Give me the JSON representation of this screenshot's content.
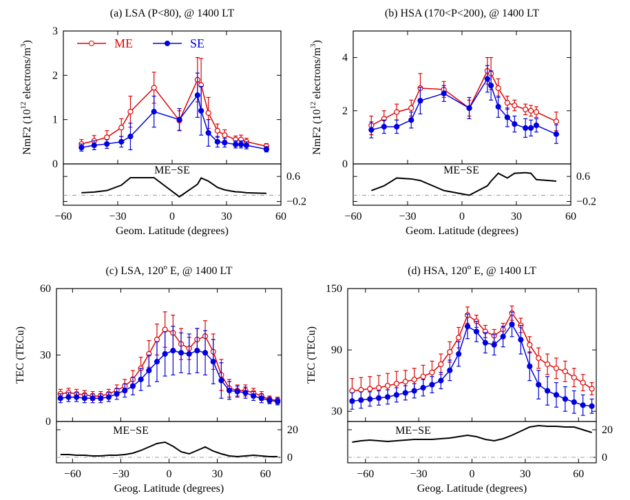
{
  "chart_data": [
    {
      "type": "line",
      "title": "(a) LSA (P<80), @ 1400 LT",
      "xlabel": "Geom. Latitude (degrees)",
      "ylabel": [
        "NmF2 (10",
        "12",
        " electrons/m",
        "3",
        ")"
      ],
      "x": [
        -50,
        -43,
        -36,
        -28,
        -23,
        -10,
        4,
        14,
        16,
        20,
        25,
        29,
        35,
        38,
        41,
        52
      ],
      "xlim": [
        -60,
        60
      ],
      "xticks": [
        {
          "value": -60,
          "label": "−60"
        },
        {
          "value": -30,
          "label": "−30"
        },
        0,
        30,
        60
      ],
      "ylim": [
        0,
        3
      ],
      "yticks": [
        0,
        1,
        2,
        3
      ],
      "series": [
        {
          "name": "ME",
          "color": "#e00000",
          "marker": "open",
          "values": [
            0.45,
            0.52,
            0.6,
            0.82,
            1.18,
            1.72,
            0.98,
            1.9,
            1.78,
            1.15,
            0.75,
            0.65,
            0.55,
            0.55,
            0.5,
            0.4
          ],
          "errors": [
            0.1,
            0.12,
            0.15,
            0.2,
            0.35,
            0.35,
            0.22,
            0.5,
            0.6,
            0.35,
            0.15,
            0.12,
            0.08,
            0.1,
            0.08,
            0.06
          ]
        },
        {
          "name": "SE",
          "color": "#0000e0",
          "marker": "filled",
          "values": [
            0.37,
            0.42,
            0.45,
            0.5,
            0.62,
            1.18,
            1.0,
            1.55,
            1.2,
            0.7,
            0.5,
            0.48,
            0.44,
            0.44,
            0.42,
            0.33
          ],
          "errors": [
            0.08,
            0.1,
            0.1,
            0.12,
            0.3,
            0.35,
            0.25,
            0.5,
            0.55,
            0.3,
            0.12,
            0.1,
            0.08,
            0.08,
            0.08,
            0.06
          ]
        }
      ],
      "inset": {
        "label": "ME−SE",
        "values": [
          0.08,
          0.1,
          0.15,
          0.32,
          0.56,
          0.56,
          -0.05,
          0.35,
          0.55,
          0.45,
          0.25,
          0.17,
          0.11,
          0.1,
          0.08,
          0.06
        ],
        "ylim": [
          -0.32,
          1.0
        ],
        "yticks": [
          {
            "value": -0.2,
            "label": "−0.2"
          },
          0.6
        ]
      }
    },
    {
      "type": "line",
      "title": "(b) HSA (170<P<200), @ 1400 LT",
      "xlabel": "Geom. Latitude (degrees)",
      "ylabel": [
        "NmF2 (10",
        "12",
        " electrons/m",
        "3",
        ")"
      ],
      "x": [
        -50,
        -43,
        -36,
        -28,
        -23,
        -10,
        4,
        14,
        16,
        20,
        25,
        29,
        35,
        38,
        41,
        52
      ],
      "xlim": [
        -60,
        60
      ],
      "xticks": [
        {
          "value": -60,
          "label": "−60"
        },
        {
          "value": -30,
          "label": "−30"
        },
        0,
        30,
        60
      ],
      "ylim": [
        0,
        5
      ],
      "yticks": [
        0,
        2,
        4
      ],
      "series": [
        {
          "color": "#e00000",
          "marker": "open",
          "values": [
            1.45,
            1.7,
            1.95,
            2.1,
            2.85,
            2.8,
            2.1,
            3.5,
            3.4,
            2.85,
            2.3,
            2.2,
            2.05,
            2.0,
            1.95,
            1.6
          ],
          "errors": [
            0.35,
            0.3,
            0.3,
            0.3,
            0.55,
            0.3,
            0.3,
            0.5,
            0.6,
            0.35,
            0.25,
            0.2,
            0.2,
            0.2,
            0.2,
            0.35
          ]
        },
        {
          "color": "#0000e0",
          "marker": "filled",
          "values": [
            1.28,
            1.4,
            1.4,
            1.65,
            2.38,
            2.65,
            2.1,
            3.2,
            2.95,
            2.15,
            1.75,
            1.5,
            1.35,
            1.35,
            1.45,
            1.12
          ],
          "errors": [
            0.3,
            0.25,
            0.25,
            0.3,
            0.5,
            0.3,
            0.4,
            0.5,
            0.55,
            0.4,
            0.35,
            0.3,
            0.35,
            0.3,
            0.25,
            0.35
          ]
        }
      ],
      "inset": {
        "label": "ME−SE",
        "values": [
          0.15,
          0.3,
          0.55,
          0.52,
          0.47,
          0.15,
          0.0,
          0.3,
          0.45,
          0.7,
          0.55,
          0.7,
          0.72,
          0.7,
          0.5,
          0.45
        ],
        "ylim": [
          -0.32,
          1.0
        ],
        "yticks": [
          {
            "value": -0.2,
            "label": "−0.2"
          },
          0.6
        ]
      }
    },
    {
      "type": "line",
      "title": [
        "(c) LSA, 120",
        "o",
        " E, @ 1400 LT"
      ],
      "xlabel": "Geog. Latitude (degrees)",
      "ylabel": "TEC (TECu)",
      "x": [
        -67.5,
        -62.5,
        -57.5,
        -52.5,
        -47.5,
        -42.5,
        -37.5,
        -32.5,
        -27.5,
        -22.5,
        -17.5,
        -12.5,
        -7.5,
        -2.5,
        2.5,
        7.5,
        12.5,
        17.5,
        22.5,
        27.5,
        32.5,
        37.5,
        42.5,
        47.5,
        52.5,
        57.5,
        62.5,
        67.5
      ],
      "xlim": [
        -70,
        70
      ],
      "xticks": [
        {
          "value": -60,
          "label": "−60"
        },
        {
          "value": -30,
          "label": "−30"
        },
        0,
        30,
        60
      ],
      "ylim": [
        0,
        60
      ],
      "yticks": [
        0,
        30,
        60
      ],
      "series": [
        {
          "color": "#e00000",
          "marker": "open",
          "values": [
            12.5,
            13,
            12.5,
            12,
            11.5,
            11.5,
            12.5,
            14,
            16,
            19,
            24,
            30.5,
            37,
            41.5,
            40,
            35,
            33,
            37,
            38.5,
            31.5,
            21,
            15,
            14,
            14,
            13,
            11.5,
            10,
            9.5
          ],
          "errors": [
            2,
            2,
            2,
            2,
            2,
            2,
            2,
            2.5,
            3,
            4,
            5,
            6,
            7,
            8,
            8,
            7,
            5,
            5,
            7,
            8,
            7,
            4,
            2.5,
            2.5,
            2,
            2,
            1.5,
            1.5
          ]
        },
        {
          "color": "#0000e0",
          "marker": "filled",
          "values": [
            10.5,
            11,
            11,
            10.5,
            10.5,
            10.5,
            11,
            12.5,
            14,
            16,
            19,
            23,
            27,
            30.5,
            32,
            31,
            30.5,
            32,
            31,
            27,
            18.5,
            14,
            13.5,
            13,
            11.5,
            10.5,
            9.5,
            9
          ],
          "errors": [
            2,
            2,
            2,
            2,
            2,
            2,
            2,
            2.5,
            3,
            4,
            5,
            7,
            9,
            10,
            11,
            9,
            9,
            10,
            10,
            10,
            8,
            4,
            2.5,
            2.5,
            2,
            2,
            1.5,
            1.5
          ]
        }
      ],
      "inset": {
        "label": "ME−SE",
        "values": [
          2,
          2,
          1.5,
          1.5,
          1,
          1,
          1.5,
          1.5,
          2,
          3,
          5,
          7.5,
          10,
          11,
          8,
          4,
          2.5,
          5,
          7.5,
          4.5,
          2.5,
          1,
          0.5,
          1,
          1.5,
          1,
          0.5,
          0.5
        ],
        "ylim": [
          -4,
          26
        ],
        "yticks": [
          0,
          20
        ]
      }
    },
    {
      "type": "line",
      "title": [
        "(d) HSA, 120",
        "o",
        " E, @ 1400 LT"
      ],
      "xlabel": "Geog. Latitude (degrees)",
      "ylabel": "TEC (TECu)",
      "x": [
        -67.5,
        -62.5,
        -57.5,
        -52.5,
        -47.5,
        -42.5,
        -37.5,
        -32.5,
        -27.5,
        -22.5,
        -17.5,
        -12.5,
        -7.5,
        -2.5,
        2.5,
        7.5,
        12.5,
        17.5,
        22.5,
        27.5,
        32.5,
        37.5,
        42.5,
        47.5,
        52.5,
        57.5,
        62.5,
        67.5
      ],
      "xlim": [
        -70,
        70
      ],
      "xticks": [
        {
          "value": -60,
          "label": "−60"
        },
        {
          "value": -30,
          "label": "−30"
        },
        0,
        30,
        60
      ],
      "ylim": [
        20,
        150
      ],
      "yticks": [
        30,
        90,
        150
      ],
      "series": [
        {
          "color": "#e00000",
          "marker": "open",
          "values": [
            50,
            51,
            52,
            53,
            55,
            57,
            59,
            61,
            64,
            68,
            76,
            88,
            102,
            124,
            118,
            108,
            104,
            110,
            126,
            114,
            95,
            82,
            76,
            72,
            69,
            63,
            58,
            52
          ],
          "errors": [
            12,
            12,
            12,
            12,
            12,
            12,
            11,
            11,
            11,
            11,
            10,
            10,
            10,
            8,
            6,
            6,
            6,
            6,
            7,
            7,
            8,
            10,
            10,
            10,
            10,
            9,
            8,
            6
          ]
        },
        {
          "color": "#0000e0",
          "marker": "filled",
          "values": [
            40,
            41,
            42,
            43,
            44,
            46,
            48,
            50,
            53,
            56,
            60,
            70,
            86,
            113,
            108,
            97,
            95,
            103,
            115,
            100,
            74,
            56,
            50,
            46,
            42,
            39,
            36,
            35
          ],
          "errors": [
            8,
            8,
            7,
            7,
            7,
            7,
            7,
            7,
            8,
            8,
            8,
            10,
            12,
            12,
            10,
            10,
            10,
            10,
            12,
            14,
            14,
            14,
            14,
            12,
            12,
            11,
            10,
            7
          ]
        }
      ],
      "inset": {
        "label": "ME−SE",
        "values": [
          11,
          12,
          12.5,
          12,
          11.5,
          12,
          12.5,
          13,
          13,
          13,
          13.5,
          14,
          15,
          16,
          15,
          13,
          12,
          13.5,
          16,
          19,
          22,
          23,
          22.5,
          22.5,
          22,
          22,
          20,
          18
        ],
        "ylim": [
          -4,
          26
        ],
        "yticks": [
          0,
          20
        ]
      }
    }
  ]
}
